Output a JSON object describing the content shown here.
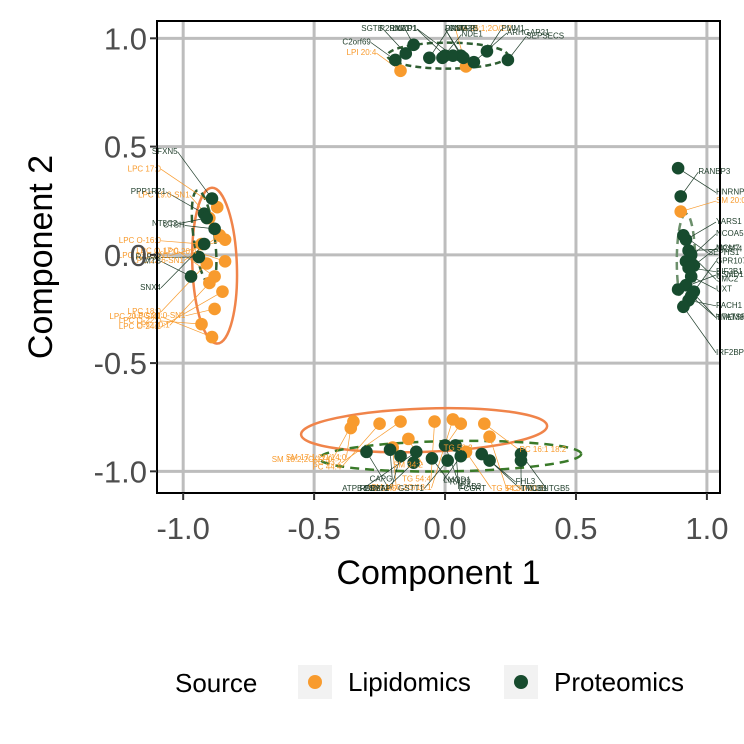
{
  "chart_data": {
    "type": "scatter",
    "xlabel": "Component 1",
    "ylabel": "Component 2",
    "xlim": [
      -1.1,
      1.05
    ],
    "ylim": [
      -1.1,
      1.08
    ],
    "xticks": [
      -1.0,
      -0.5,
      0.0,
      0.5,
      1.0
    ],
    "yticks": [
      -1.0,
      -0.5,
      0.0,
      0.5,
      1.0
    ],
    "grid": true,
    "legend": {
      "title": "Source",
      "position": "bottom",
      "items": [
        {
          "name": "Lipidomics",
          "color": "#f89b2e"
        },
        {
          "name": "Proteomics",
          "color": "#174b2e"
        }
      ]
    },
    "series": [
      {
        "name": "Lipidomics",
        "color": "#f89b2e",
        "points": [
          {
            "x": -0.17,
            "y": 0.85,
            "label": "LPI 20:4"
          },
          {
            "x": 0.08,
            "y": 0.87,
            "label": "SM 26:1;2O/2:0"
          },
          {
            "x": 0.9,
            "y": 0.2,
            "label": "SM 20:0;2O/16:1"
          },
          {
            "x": -0.87,
            "y": 0.22,
            "label": "LPC 17:0"
          },
          {
            "x": -0.9,
            "y": 0.17,
            "label": "LPC 19:0-SN1"
          },
          {
            "x": -0.86,
            "y": 0.09,
            "label": "LPC 22:6-SN1"
          },
          {
            "x": -0.84,
            "y": 0.07,
            "label": "LPC 23:0-SN1"
          },
          {
            "x": -0.93,
            "y": 0.05,
            "label": "LPC O-16:0"
          },
          {
            "x": -0.84,
            "y": -0.03,
            "label": "LPC 20:4"
          },
          {
            "x": -0.88,
            "y": -0.1,
            "label": "LPC O-17:0"
          },
          {
            "x": -0.9,
            "y": -0.13,
            "label": "LPC 20:1"
          },
          {
            "x": -0.85,
            "y": -0.17,
            "label": "LPC O-24:1"
          },
          {
            "x": -0.88,
            "y": -0.25,
            "label": "LPC 20:0-SN1"
          },
          {
            "x": -0.93,
            "y": -0.32,
            "label": "LPC O-22:0"
          },
          {
            "x": -0.89,
            "y": -0.38,
            "label": "LPC 20:0-SN1"
          },
          {
            "x": -0.91,
            "y": -0.04,
            "label": "LPC 18:0"
          },
          {
            "x": -0.36,
            "y": -0.8,
            "label": "SM 17:1;2O/14:0"
          },
          {
            "x": -0.35,
            "y": -0.77,
            "label": "SM 18:2;2O/17:0"
          },
          {
            "x": -0.25,
            "y": -0.78,
            "label": "PC 44:4"
          },
          {
            "x": -0.17,
            "y": -0.77,
            "label": "PC 33:2"
          },
          {
            "x": -0.14,
            "y": -0.85,
            "label": "SM 34:2"
          },
          {
            "x": -0.2,
            "y": -0.89,
            "label": "TG 54:5"
          },
          {
            "x": -0.04,
            "y": -0.77,
            "label": "TG 54:4"
          },
          {
            "x": 0.03,
            "y": -0.76,
            "label": "SM 18:0;2O/18:1"
          },
          {
            "x": 0.06,
            "y": -0.78,
            "label": "TG 52:3"
          },
          {
            "x": 0.15,
            "y": -0.78,
            "label": "PC 16:1 18:2"
          },
          {
            "x": 0.08,
            "y": -0.91,
            "label": "TG 54:3"
          },
          {
            "x": 0.17,
            "y": -0.84,
            "label": "PC O-31:1"
          }
        ]
      },
      {
        "name": "Proteomics",
        "color": "#174b2e",
        "points": [
          {
            "x": -0.19,
            "y": 0.9,
            "label": "C2orf69"
          },
          {
            "x": -0.15,
            "y": 0.93,
            "label": "SGTB"
          },
          {
            "x": -0.12,
            "y": 0.97,
            "label": "P2RX7"
          },
          {
            "x": -0.06,
            "y": 0.91,
            "label": "CNTFR"
          },
          {
            "x": -0.01,
            "y": 0.91,
            "label": "NDE1"
          },
          {
            "x": 0.0,
            "y": 0.92,
            "label": "SMAD1"
          },
          {
            "x": 0.06,
            "y": 0.92,
            "label": "DAD2"
          },
          {
            "x": 0.16,
            "y": 0.94,
            "label": "PMM1"
          },
          {
            "x": 0.24,
            "y": 0.9,
            "label": "SEPSECS"
          },
          {
            "x": 0.11,
            "y": 0.89,
            "label": "ARHGAP21"
          },
          {
            "x": 0.03,
            "y": 0.92,
            "label": "LUZP1"
          },
          {
            "x": 0.07,
            "y": 0.91,
            "label": "PNMA8B"
          },
          {
            "x": -0.88,
            "y": 0.12,
            "label": "CTSH"
          },
          {
            "x": -0.92,
            "y": 0.19,
            "label": "PPP1R21"
          },
          {
            "x": -0.89,
            "y": 0.26,
            "label": "SFXN5"
          },
          {
            "x": -0.92,
            "y": 0.05,
            "label": "SNX4"
          },
          {
            "x": -0.91,
            "y": 0.17,
            "label": "NT5C2"
          },
          {
            "x": -0.94,
            "y": -0.01,
            "label": "RAB32"
          },
          {
            "x": -0.97,
            "y": -0.1,
            "label": "MTS"
          },
          {
            "x": 0.89,
            "y": 0.4,
            "label": "HNRNPH3"
          },
          {
            "x": 0.9,
            "y": 0.27,
            "label": "RANBP3"
          },
          {
            "x": 0.92,
            "y": 0.07,
            "label": "YARS1"
          },
          {
            "x": 0.93,
            "y": 0.02,
            "label": "CRSF4"
          },
          {
            "x": 0.94,
            "y": 0.0,
            "label": "SMC2"
          },
          {
            "x": 0.91,
            "y": 0.09,
            "label": "SEPHS1"
          },
          {
            "x": 0.92,
            "y": -0.03,
            "label": "NCOA5"
          },
          {
            "x": 0.95,
            "y": -0.05,
            "label": "MCM7"
          },
          {
            "x": 0.93,
            "y": -0.06,
            "label": "EIF2B1"
          },
          {
            "x": 0.94,
            "y": -0.1,
            "label": "UXT"
          },
          {
            "x": 0.92,
            "y": -0.14,
            "label": "HTATSF1"
          },
          {
            "x": 0.95,
            "y": -0.17,
            "label": "GPR107"
          },
          {
            "x": 0.89,
            "y": -0.16,
            "label": "PSMD12"
          },
          {
            "x": 0.93,
            "y": -0.21,
            "label": "PACH1"
          },
          {
            "x": 0.94,
            "y": -0.19,
            "label": "TMEM87A"
          },
          {
            "x": 0.91,
            "y": -0.24,
            "label": "IRF2BPL"
          },
          {
            "x": -0.3,
            "y": -0.91,
            "label": "ESYT1"
          },
          {
            "x": -0.21,
            "y": -0.9,
            "label": "CAPG"
          },
          {
            "x": -0.17,
            "y": -0.93,
            "label": "CD2AP"
          },
          {
            "x": -0.12,
            "y": -0.96,
            "label": "RAB8A"
          },
          {
            "x": -0.11,
            "y": -0.91,
            "label": "ATPB"
          },
          {
            "x": -0.05,
            "y": -0.94,
            "label": "RAB9"
          },
          {
            "x": 0.0,
            "y": -0.88,
            "label": "DAB2"
          },
          {
            "x": 0.04,
            "y": -0.88,
            "label": "FCGRT"
          },
          {
            "x": 0.01,
            "y": -0.95,
            "label": "GSTT1"
          },
          {
            "x": 0.06,
            "y": -0.93,
            "label": "LMOD1"
          },
          {
            "x": 0.14,
            "y": -0.92,
            "label": "FHL3"
          },
          {
            "x": 0.17,
            "y": -0.95,
            "label": "TMUB1"
          },
          {
            "x": 0.29,
            "y": -0.92,
            "label": "ITGB5"
          },
          {
            "x": 0.29,
            "y": -0.95,
            "label": "TTC38"
          }
        ]
      }
    ],
    "ellipses": [
      {
        "series": "Lipidomics",
        "cx": -0.88,
        "cy": -0.05,
        "rx": 0.085,
        "ry": 0.36,
        "angle": -2,
        "color": "#f0844a",
        "dash": "none"
      },
      {
        "series": "Lipidomics",
        "cx": -0.08,
        "cy": -0.81,
        "rx": 0.47,
        "ry": 0.1,
        "angle": -2,
        "color": "#f0844a",
        "dash": "none"
      },
      {
        "series": "Proteomics",
        "cx": -0.92,
        "cy": 0.08,
        "rx": 0.04,
        "ry": 0.22,
        "angle": -8,
        "color": "#2e5e32",
        "dash": "8 5"
      },
      {
        "series": "Proteomics",
        "cx": 0.02,
        "cy": -0.93,
        "rx": 0.5,
        "ry": 0.07,
        "angle": -1,
        "color": "#3a7a2a",
        "dash": "9 6"
      },
      {
        "series": "Proteomics",
        "cx": 0.92,
        "cy": -0.03,
        "rx": 0.035,
        "ry": 0.22,
        "angle": 0,
        "color": "#6b8f6b",
        "dash": "8 5"
      },
      {
        "series": "Proteomics",
        "cx": 0.01,
        "cy": 0.92,
        "rx": 0.23,
        "ry": 0.06,
        "angle": 0,
        "color": "#2e5e32",
        "dash": "6 4"
      }
    ]
  }
}
